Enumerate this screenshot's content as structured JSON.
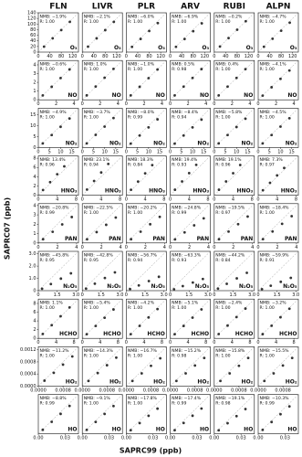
{
  "chart_data": {
    "type": "scatter",
    "xlabel": "SAPRC99 (ppb)",
    "ylabel": "SAPRC07 (ppb)",
    "columns": [
      "FLN",
      "LIVR",
      "PLR",
      "ARV",
      "RUBI",
      "ALPN"
    ],
    "rows": [
      {
        "species": "O₃",
        "xlim": [
          0,
          140
        ],
        "ylim": [
          0,
          140
        ],
        "yticks": [
          0,
          20,
          40,
          60,
          80,
          100,
          120,
          140
        ],
        "xticks": [
          0,
          40,
          80,
          120
        ],
        "x": [
          20,
          50,
          80,
          110
        ],
        "panels": [
          {
            "nmb": "NMB: −1.9%",
            "r": "R: 1.00",
            "values": [
              19.6,
              49.1,
              78.5,
              107.9
            ]
          },
          {
            "nmb": "NMB: −2.1%",
            "r": "R: 1.00",
            "values": [
              19.6,
              49.0,
              78.3,
              107.7
            ]
          },
          {
            "nmb": "NMB: −6.0%",
            "r": "R: 1.00",
            "values": [
              18.8,
              47.0,
              75.2,
              103.4
            ]
          },
          {
            "nmb": "NMB: −6.9%",
            "r": "R: 1.00",
            "values": [
              18.6,
              46.6,
              74.5,
              102.4
            ]
          },
          {
            "nmb": "NMB: −0.2%",
            "r": "R: 1.00",
            "values": [
              20.0,
              49.9,
              79.8,
              109.8
            ]
          },
          {
            "nmb": "NMB: −4.7%",
            "r": "R: 1.00",
            "values": [
              19.1,
              47.7,
              76.2,
              104.8
            ]
          }
        ]
      },
      {
        "species": "NO",
        "xlim": [
          0,
          4.5
        ],
        "ylim": [
          0,
          4.5
        ],
        "yticks": [
          0,
          1,
          2,
          3,
          4
        ],
        "xticks": [
          0,
          2,
          4
        ],
        "x": [
          0.5,
          1.5,
          2.5,
          3.5
        ],
        "panels": [
          {
            "nmb": "NMB: −0.6%",
            "r": "R: 1.00",
            "values": [
              0.5,
              1.49,
              2.49,
              3.48
            ]
          },
          {
            "nmb": "NMB: 1.0%",
            "r": "R: 1.00",
            "values": [
              0.51,
              1.52,
              2.53,
              3.54
            ]
          },
          {
            "nmb": "NMB: −1.0%",
            "r": "R: 1.00",
            "values": [
              0.5,
              1.49,
              2.48,
              3.47
            ]
          },
          {
            "nmb": "NMB: 0.5%",
            "r": "R: 0.98",
            "values": [
              0.5,
              1.51,
              2.51,
              3.52
            ]
          },
          {
            "nmb": "NMB: 0.4%",
            "r": "R: 1.00",
            "values": [
              0.5,
              1.51,
              2.51,
              3.51
            ]
          },
          {
            "nmb": "NMB: −4.1%",
            "r": "R: 1.00",
            "values": [
              0.48,
              1.44,
              2.4,
              3.36
            ]
          }
        ]
      },
      {
        "species": "NO₂",
        "xlim": [
          0,
          18
        ],
        "ylim": [
          0,
          18
        ],
        "yticks": [
          0,
          5,
          10,
          15
        ],
        "xticks": [
          0,
          5,
          10,
          15
        ],
        "x": [
          2,
          6,
          10,
          14
        ],
        "panels": [
          {
            "nmb": "NMB: −4.9%",
            "r": "R: 1.00",
            "values": [
              1.9,
              5.7,
              9.5,
              13.3
            ]
          },
          {
            "nmb": "NMB: −3.7%",
            "r": "R: 1.00",
            "values": [
              1.9,
              5.8,
              9.6,
              13.5
            ]
          },
          {
            "nmb": "NMB: −8.0%",
            "r": "R: 0.99",
            "values": [
              1.8,
              5.5,
              9.2,
              12.9
            ]
          },
          {
            "nmb": "NMB: −8.4%",
            "r": "R: 0.94",
            "values": [
              1.8,
              5.5,
              9.2,
              12.8
            ]
          },
          {
            "nmb": "NMB: −5.8%",
            "r": "R: 1.00",
            "values": [
              1.9,
              5.7,
              9.4,
              13.2
            ]
          },
          {
            "nmb": "NMB: −4.5%",
            "r": "R: 1.00",
            "values": [
              1.9,
              5.7,
              9.6,
              13.4
            ]
          }
        ]
      },
      {
        "species": "HNO₃",
        "xlim": [
          0,
          8.5
        ],
        "ylim": [
          0,
          8.5
        ],
        "yticks": [
          0,
          2,
          4,
          6,
          8
        ],
        "xticks": [
          0,
          4,
          8
        ],
        "x": [
          1,
          2.5,
          4,
          5.5
        ],
        "panels": [
          {
            "nmb": "NMB: 13.4%",
            "r": "R: 0.96",
            "values": [
              1.13,
              2.84,
              4.54,
              6.24
            ]
          },
          {
            "nmb": "NMB: 23.1%",
            "r": "R: 0.94",
            "values": [
              1.23,
              3.08,
              4.92,
              6.77
            ]
          },
          {
            "nmb": "NMB: 18.3%",
            "r": "R: 0.84",
            "values": [
              1.18,
              2.96,
              4.73,
              6.51
            ]
          },
          {
            "nmb": "NMB: 19.4%",
            "r": "R: 0.93",
            "values": [
              1.19,
              2.99,
              4.78,
              6.57
            ]
          },
          {
            "nmb": "NMB: 19.1%",
            "r": "R: 0.96",
            "values": [
              1.19,
              2.98,
              4.76,
              6.55
            ]
          },
          {
            "nmb": "NMB: 7.3%",
            "r": "R: 0.97",
            "values": [
              1.07,
              2.68,
              4.29,
              5.9
            ]
          }
        ]
      },
      {
        "species": "PAN",
        "xlim": [
          0,
          4.2
        ],
        "ylim": [
          0,
          4.2
        ],
        "yticks": [
          0,
          1,
          2,
          3,
          4
        ],
        "xticks": [
          0,
          2,
          4
        ],
        "x": [
          0.5,
          1.5,
          2.5,
          3.5
        ],
        "panels": [
          {
            "nmb": "NMB: −20.8%",
            "r": "R: 0.99",
            "values": [
              0.4,
              1.19,
              1.98,
              2.77
            ]
          },
          {
            "nmb": "NMB: −22.5%",
            "r": "R: 1.00",
            "values": [
              0.39,
              1.16,
              1.94,
              2.71
            ]
          },
          {
            "nmb": "NMB: −20.2%",
            "r": "R: 1.00",
            "values": [
              0.4,
              1.2,
              2.0,
              2.79
            ]
          },
          {
            "nmb": "NMB: −24.8%",
            "r": "R: 0.99",
            "values": [
              0.38,
              1.13,
              1.88,
              2.63
            ]
          },
          {
            "nmb": "NMB: −19.5%",
            "r": "R: 0.97",
            "values": [
              0.4,
              1.21,
              2.01,
              2.82
            ]
          },
          {
            "nmb": "NMB: −18.4%",
            "r": "R: 1.00",
            "values": [
              0.41,
              1.22,
              2.04,
              2.86
            ]
          }
        ]
      },
      {
        "species": "N₂O₅",
        "xlim": [
          0,
          3.2
        ],
        "ylim": [
          0,
          3.2
        ],
        "yticks": [
          0,
          {
            "value": 1,
            "label": "1.0"
          },
          {
            "value": 2,
            "label": "2.0"
          },
          {
            "value": 3,
            "label": "3.0"
          }
        ],
        "xticks": [
          0,
          1.5,
          {
            "value": 3,
            "label": "3.0"
          }
        ],
        "x": [
          0.3,
          1,
          1.8,
          2.6
        ],
        "panels": [
          {
            "nmb": "NMB: −45.8%",
            "r": "R: 0.95",
            "values": [
              0.16,
              0.54,
              0.98,
              1.41
            ]
          },
          {
            "nmb": "NMB: −42.8%",
            "r": "R: 0.95",
            "values": [
              0.17,
              0.57,
              1.03,
              1.49
            ]
          },
          {
            "nmb": "NMB: −56.7%",
            "r": "R: 0.94",
            "values": [
              0.13,
              0.43,
              0.78,
              1.13
            ]
          },
          {
            "nmb": "NMB: −63.3%",
            "r": "R: 0.93",
            "values": [
              0.11,
              0.37,
              0.66,
              0.95
            ]
          },
          {
            "nmb": "NMB: −44.2%",
            "r": "R: 0.84",
            "values": [
              0.17,
              0.56,
              1.0,
              1.45
            ]
          },
          {
            "nmb": "NMB: −59.9%",
            "r": "R: 0.91",
            "values": [
              0.12,
              0.4,
              0.72,
              1.04
            ]
          }
        ]
      },
      {
        "species": "HCHO",
        "xlim": [
          0,
          9
        ],
        "ylim": [
          0,
          9
        ],
        "yticks": [
          0,
          2,
          4,
          6,
          8
        ],
        "xticks": [
          0,
          4,
          8
        ],
        "x": [
          1,
          3,
          5,
          7
        ],
        "panels": [
          {
            "nmb": "NMB: 1.1%",
            "r": "R: 1.00",
            "values": [
              1.01,
              3.03,
              5.06,
              7.08
            ]
          },
          {
            "nmb": "NMB: −5.4%",
            "r": "R: 1.00",
            "values": [
              0.95,
              2.84,
              4.73,
              6.62
            ]
          },
          {
            "nmb": "NMB: −4.2%",
            "r": "R: 1.00",
            "values": [
              0.96,
              2.87,
              4.79,
              6.71
            ]
          },
          {
            "nmb": "NMB: −5.1%",
            "r": "R: 1.00",
            "values": [
              0.95,
              2.85,
              4.75,
              6.64
            ]
          },
          {
            "nmb": "NMB: −2.4%",
            "r": "R: 1.00",
            "values": [
              0.98,
              2.93,
              4.88,
              6.83
            ]
          },
          {
            "nmb": "NMB: −3.2%",
            "r": "R: 1.00",
            "values": [
              0.97,
              2.9,
              4.84,
              6.78
            ]
          }
        ]
      },
      {
        "species": "HO₂",
        "xlim": [
          0,
          0.0013
        ],
        "ylim": [
          0,
          0.0013
        ],
        "yticks": [
          {
            "value": 0,
            "label": "0.0000"
          },
          0.0004,
          0.0008,
          0.0012
        ],
        "xticks": [
          {
            "value": 0,
            "label": "0.0000"
          },
          0.0008
        ],
        "x": [
          0.0002,
          0.0005,
          0.0008,
          0.0011
        ],
        "panels": [
          {
            "nmb": "NMB: −11.2%",
            "r": "R: 1.00",
            "values": [
              0.00018,
              0.00044,
              0.00071,
              0.00098
            ]
          },
          {
            "nmb": "NMB: −14.3%",
            "r": "R: 1.00",
            "values": [
              0.00017,
              0.00043,
              0.00069,
              0.00094
            ]
          },
          {
            "nmb": "NMB: −16.7%",
            "r": "R: 1.00",
            "values": [
              0.00017,
              0.00042,
              0.00067,
              0.00092
            ]
          },
          {
            "nmb": "NMB: −15.2%",
            "r": "R: 0.98",
            "values": [
              0.00017,
              0.00042,
              0.00068,
              0.00093
            ]
          },
          {
            "nmb": "NMB: −15.8%",
            "r": "R: 1.00",
            "values": [
              0.00017,
              0.00042,
              0.00067,
              0.00093
            ]
          },
          {
            "nmb": "NMB: −15.5%",
            "r": "R: 1.00",
            "values": [
              0.00017,
              0.00042,
              0.00068,
              0.00093
            ]
          }
        ]
      },
      {
        "species": "HO",
        "xlim": [
          0,
          0.045
        ],
        "ylim": [
          0,
          0.045
        ],
        "xticks": [
          {
            "value": 0,
            "label": "0.00"
          },
          0.03
        ],
        "x": [
          0.005,
          0.015,
          0.025,
          0.035
        ],
        "panels": [
          {
            "nmb": "NMB: −8.8%",
            "r": "R: 0.99",
            "values": [
              0.0046,
              0.0137,
              0.0228,
              0.0319
            ]
          },
          {
            "nmb": "NMB: −9.1%",
            "r": "R: 1.00",
            "values": [
              0.0045,
              0.0136,
              0.0227,
              0.0318
            ]
          },
          {
            "nmb": "NMB: −17.8%",
            "r": "R: 1.00",
            "values": [
              0.0041,
              0.0123,
              0.0206,
              0.0288
            ]
          },
          {
            "nmb": "NMB: −17.4%",
            "r": "R: 0.99",
            "values": [
              0.0041,
              0.0124,
              0.0207,
              0.0289
            ]
          },
          {
            "nmb": "NMB: −19.1%",
            "r": "R: 0.98",
            "values": [
              0.004,
              0.0121,
              0.0202,
              0.0283
            ]
          },
          {
            "nmb": "NMB: −10.3%",
            "r": "R: 0.99",
            "values": [
              0.0045,
              0.0135,
              0.0224,
              0.0314
            ]
          }
        ]
      }
    ]
  }
}
